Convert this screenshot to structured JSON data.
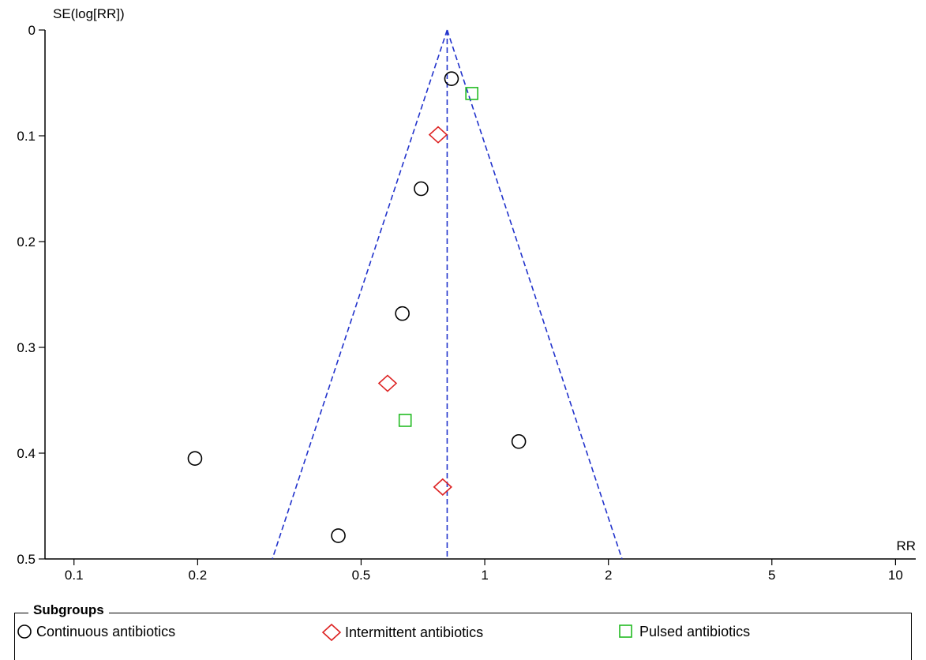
{
  "chart_data": {
    "type": "scatter",
    "title": "",
    "xlabel": "RR",
    "ylabel": "SE(log[RR])",
    "x_scale": "log",
    "xlim": [
      0.085,
      11.2
    ],
    "ylim": [
      0,
      0.5
    ],
    "y_reversed": true,
    "x_ticks": [
      0.1,
      0.2,
      0.5,
      1,
      2,
      5,
      10
    ],
    "x_tick_labels": [
      "0.1",
      "0.2",
      "0.5",
      "1",
      "2",
      "5",
      "10"
    ],
    "y_ticks": [
      0,
      0.1,
      0.2,
      0.3,
      0.4,
      0.5
    ],
    "y_tick_labels": [
      "0",
      "0.1",
      "0.2",
      "0.3",
      "0.4",
      "0.5"
    ],
    "pooled_estimate": 0.81,
    "funnel_color": "#2233cc",
    "series": [
      {
        "name": "Continuous antibiotics",
        "marker": "circle",
        "color": "#000000",
        "points": [
          {
            "x": 0.83,
            "y": 0.046
          },
          {
            "x": 0.7,
            "y": 0.15
          },
          {
            "x": 0.63,
            "y": 0.268
          },
          {
            "x": 1.21,
            "y": 0.389
          },
          {
            "x": 0.197,
            "y": 0.405
          },
          {
            "x": 0.44,
            "y": 0.478
          }
        ]
      },
      {
        "name": "Intermittent antibiotics",
        "marker": "diamond",
        "color": "#dd2222",
        "points": [
          {
            "x": 0.77,
            "y": 0.099
          },
          {
            "x": 0.58,
            "y": 0.334
          },
          {
            "x": 0.79,
            "y": 0.432
          }
        ]
      },
      {
        "name": "Pulsed antibiotics",
        "marker": "square",
        "color": "#22bb22",
        "points": [
          {
            "x": 0.93,
            "y": 0.06
          },
          {
            "x": 0.64,
            "y": 0.369
          }
        ]
      }
    ]
  },
  "legend": {
    "title": "Subgroups",
    "items": [
      "Continuous antibiotics",
      "Intermittent antibiotics",
      "Pulsed antibiotics"
    ]
  }
}
